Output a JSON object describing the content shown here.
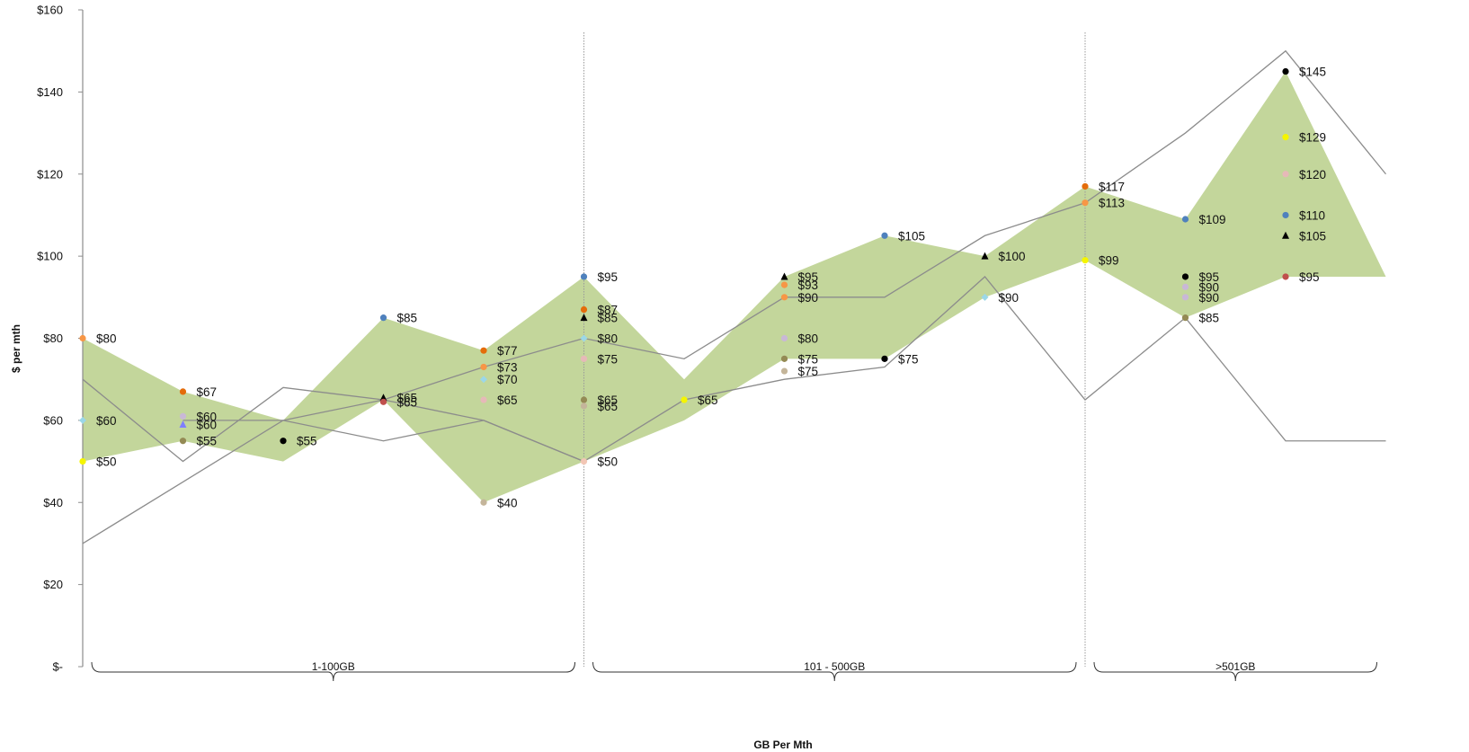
{
  "chart_data": {
    "type": "scatter",
    "xlabel": "GB Per Mth",
    "ylabel": "$ per mth",
    "ylim": [
      0,
      160
    ],
    "yticks": [
      {
        "value": 0,
        "label": "$-"
      },
      {
        "value": 20,
        "label": "$20"
      },
      {
        "value": 40,
        "label": "$40"
      },
      {
        "value": 60,
        "label": "$60"
      },
      {
        "value": 80,
        "label": "$80"
      },
      {
        "value": 100,
        "label": "$100"
      },
      {
        "value": 120,
        "label": "$120"
      },
      {
        "value": 140,
        "label": "$140"
      },
      {
        "value": 160,
        "label": "$160"
      }
    ],
    "groups": [
      {
        "label": "1-100GB",
        "from": 0,
        "to": 5
      },
      {
        "label": "101 - 500GB",
        "from": 5,
        "to": 10
      },
      {
        "label": ">501GB",
        "from": 10,
        "to": 13
      }
    ],
    "dividers": [
      5,
      10
    ],
    "band": {
      "color": "#c3d69b",
      "upper": [
        80,
        67,
        60,
        85,
        77,
        95,
        70,
        95,
        105,
        100,
        117,
        109,
        145,
        95
      ],
      "lower": [
        50,
        55,
        50,
        65,
        40,
        50,
        60,
        75,
        75,
        90,
        99,
        85,
        95,
        95
      ]
    },
    "lines": [
      {
        "color": "#8c8c8c",
        "values": [
          30,
          45,
          60,
          65,
          73,
          80,
          75,
          90,
          90,
          105,
          113,
          130,
          150,
          120
        ]
      },
      {
        "color": "#8c8c8c",
        "values": [
          70,
          50,
          68,
          65,
          60,
          50,
          65,
          70,
          73,
          95,
          65,
          85,
          55,
          55
        ]
      },
      {
        "color": "#8c8c8c",
        "values": [
          null,
          60,
          60,
          55,
          60,
          50
        ]
      }
    ],
    "points": [
      {
        "x": 0,
        "y": 80,
        "color": "#f79646",
        "shape": "circle",
        "label": "$80"
      },
      {
        "x": 0,
        "y": 60,
        "color": "#9bd7e8",
        "shape": "diamond",
        "label": "$60"
      },
      {
        "x": 0,
        "y": 50,
        "color": "#f5f500",
        "shape": "circle",
        "label": "$50"
      },
      {
        "x": 1,
        "y": 67,
        "color": "#e46c0a",
        "shape": "circle",
        "label": "$67"
      },
      {
        "x": 1,
        "y": 61,
        "color": "#c9b8d6",
        "shape": "circle",
        "label": "$60"
      },
      {
        "x": 1,
        "y": 59,
        "color": "#7f7fff",
        "shape": "triangle",
        "label": "$60"
      },
      {
        "x": 1,
        "y": 55,
        "color": "#948a54",
        "shape": "circle",
        "label": "$55"
      },
      {
        "x": 2,
        "y": 55,
        "color": "#000000",
        "shape": "circle",
        "label": "$55"
      },
      {
        "x": 3,
        "y": 85,
        "color": "#4f81bd",
        "shape": "circle",
        "label": "$85"
      },
      {
        "x": 3,
        "y": 65.5,
        "color": "#000000",
        "shape": "triangle",
        "label": "$65"
      },
      {
        "x": 3,
        "y": 64.5,
        "color": "#c0504d",
        "shape": "circle",
        "label": "$65"
      },
      {
        "x": 4,
        "y": 77,
        "color": "#e46c0a",
        "shape": "circle",
        "label": "$77"
      },
      {
        "x": 4,
        "y": 73,
        "color": "#f79646",
        "shape": "circle",
        "label": "$73"
      },
      {
        "x": 4,
        "y": 70,
        "color": "#9bd7e8",
        "shape": "diamond",
        "label": "$70"
      },
      {
        "x": 4,
        "y": 65,
        "color": "#e6b9b8",
        "shape": "circle",
        "label": "$65"
      },
      {
        "x": 4,
        "y": 40,
        "color": "#c4b59a",
        "shape": "circle",
        "label": "$40"
      },
      {
        "x": 5,
        "y": 95,
        "color": "#4f81bd",
        "shape": "circle",
        "label": "$95"
      },
      {
        "x": 5,
        "y": 87,
        "color": "#e46c0a",
        "shape": "circle",
        "label": "$87"
      },
      {
        "x": 5,
        "y": 85,
        "color": "#000000",
        "shape": "triangle",
        "label": "$85"
      },
      {
        "x": 5,
        "y": 80,
        "color": "#9bd7e8",
        "shape": "diamond",
        "label": "$80"
      },
      {
        "x": 5,
        "y": 75,
        "color": "#e6b9b8",
        "shape": "circle",
        "label": "$75"
      },
      {
        "x": 5,
        "y": 65,
        "color": "#948a54",
        "shape": "circle",
        "label": "$65"
      },
      {
        "x": 5,
        "y": 63.5,
        "color": "#c4b59a",
        "shape": "circle",
        "label": "$65"
      },
      {
        "x": 5,
        "y": 50,
        "color": "#f2c6b5",
        "shape": "circle",
        "label": "$50"
      },
      {
        "x": 6,
        "y": 65,
        "color": "#f5f500",
        "shape": "circle",
        "label": "$65"
      },
      {
        "x": 7,
        "y": 95,
        "color": "#000000",
        "shape": "triangle",
        "label": "$95"
      },
      {
        "x": 7,
        "y": 93,
        "color": "#f79646",
        "shape": "circle",
        "label": "$93"
      },
      {
        "x": 7,
        "y": 90,
        "color": "#f79646",
        "shape": "circle",
        "label": "$90"
      },
      {
        "x": 7,
        "y": 80,
        "color": "#c9b8d6",
        "shape": "circle",
        "label": "$80"
      },
      {
        "x": 7,
        "y": 75,
        "color": "#948a54",
        "shape": "circle",
        "label": "$75"
      },
      {
        "x": 7,
        "y": 72,
        "color": "#c4b59a",
        "shape": "circle",
        "label": "$75"
      },
      {
        "x": 8,
        "y": 105,
        "color": "#4f81bd",
        "shape": "circle",
        "label": "$105"
      },
      {
        "x": 8,
        "y": 75,
        "color": "#000000",
        "shape": "circle",
        "label": "$75"
      },
      {
        "x": 9,
        "y": 100,
        "color": "#000000",
        "shape": "triangle",
        "label": "$100"
      },
      {
        "x": 9,
        "y": 90,
        "color": "#9bd7e8",
        "shape": "diamond",
        "label": "$90"
      },
      {
        "x": 10,
        "y": 117,
        "color": "#e46c0a",
        "shape": "circle",
        "label": "$117"
      },
      {
        "x": 10,
        "y": 113,
        "color": "#f79646",
        "shape": "circle",
        "label": "$113"
      },
      {
        "x": 10,
        "y": 99,
        "color": "#f5f500",
        "shape": "circle",
        "label": "$99"
      },
      {
        "x": 11,
        "y": 109,
        "color": "#4f81bd",
        "shape": "circle",
        "label": "$109"
      },
      {
        "x": 11,
        "y": 95,
        "color": "#000000",
        "shape": "circle",
        "label": "$95"
      },
      {
        "x": 11,
        "y": 92.5,
        "color": "#c9b8d6",
        "shape": "circle",
        "label": "$90"
      },
      {
        "x": 11,
        "y": 90,
        "color": "#c9b8d6",
        "shape": "circle",
        "label": "$90"
      },
      {
        "x": 11,
        "y": 85,
        "color": "#948a54",
        "shape": "circle",
        "label": "$85"
      },
      {
        "x": 12,
        "y": 145,
        "color": "#000000",
        "shape": "circle",
        "label": "$145"
      },
      {
        "x": 12,
        "y": 129,
        "color": "#f5f500",
        "shape": "circle",
        "label": "$129"
      },
      {
        "x": 12,
        "y": 120,
        "color": "#e6b9b8",
        "shape": "circle",
        "label": "$120"
      },
      {
        "x": 12,
        "y": 110,
        "color": "#4f81bd",
        "shape": "circle",
        "label": "$110"
      },
      {
        "x": 12,
        "y": 105,
        "color": "#000000",
        "shape": "triangle",
        "label": "$105"
      },
      {
        "x": 12,
        "y": 95,
        "color": "#c0504d",
        "shape": "circle",
        "label": "$95"
      }
    ]
  }
}
